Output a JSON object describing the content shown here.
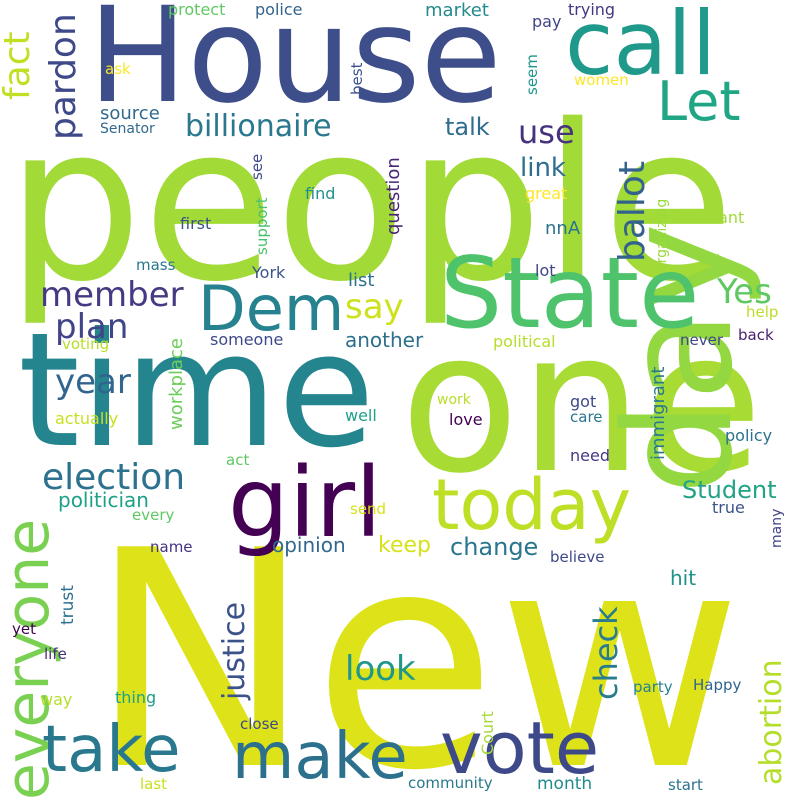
{
  "words": [
    {
      "text": "New",
      "color": "#dde318"
    },
    {
      "text": "people",
      "color": "#a2da37"
    },
    {
      "text": "one",
      "color": "#a8db34"
    },
    {
      "text": "time",
      "color": "#25858e"
    },
    {
      "text": "House",
      "color": "#3d4e8a"
    },
    {
      "text": "day",
      "color": "#93d741"
    },
    {
      "text": "State",
      "color": "#4ec36b"
    },
    {
      "text": "call",
      "color": "#1f9a8a"
    },
    {
      "text": "girl",
      "color": "#440154"
    },
    {
      "text": "today",
      "color": "#bddf26"
    },
    {
      "text": "vote",
      "color": "#3e4989"
    },
    {
      "text": "make",
      "color": "#2d708e"
    },
    {
      "text": "take",
      "color": "#29788e"
    },
    {
      "text": "everyone",
      "color": "#7ad151"
    },
    {
      "text": "Dem",
      "color": "#26828e"
    },
    {
      "text": "Let",
      "color": "#21a685"
    },
    {
      "text": "pardon",
      "color": "#3e4989"
    },
    {
      "text": "fact",
      "color": "#c2df23"
    },
    {
      "text": "billionaire",
      "color": "#2a788e"
    },
    {
      "text": "ballot",
      "color": "#33638d"
    },
    {
      "text": "election",
      "color": "#2c728e"
    },
    {
      "text": "year",
      "color": "#32658e"
    },
    {
      "text": "member",
      "color": "#443983"
    },
    {
      "text": "plan",
      "color": "#414487"
    },
    {
      "text": "say",
      "color": "#cde11d"
    },
    {
      "text": "Yes",
      "color": "#5ec962"
    },
    {
      "text": "use",
      "color": "#46327e"
    },
    {
      "text": "link",
      "color": "#2e6e8e"
    },
    {
      "text": "talk",
      "color": "#2f6c8e"
    },
    {
      "text": "check",
      "color": "#287c8e"
    },
    {
      "text": "abortion",
      "color": "#b5de2b"
    },
    {
      "text": "justice",
      "color": "#3b528b"
    },
    {
      "text": "look",
      "color": "#1f988b"
    },
    {
      "text": "Student",
      "color": "#20a386"
    },
    {
      "text": "change",
      "color": "#2a768e"
    },
    {
      "text": "keep",
      "color": "#d8e219"
    },
    {
      "text": "opinion",
      "color": "#31688e"
    },
    {
      "text": "politician",
      "color": "#1fa088"
    },
    {
      "text": "another",
      "color": "#2d708e"
    },
    {
      "text": "source",
      "color": "#31688e"
    },
    {
      "text": "market",
      "color": "#238a8d"
    },
    {
      "text": "fact",
      "color": "#c2df23"
    },
    {
      "text": "list",
      "color": "#2c728e"
    },
    {
      "text": "question",
      "color": "#482576"
    },
    {
      "text": "nnA",
      "color": "#2c728e"
    },
    {
      "text": "immigrant",
      "color": "#2a788e"
    },
    {
      "text": "workplace",
      "color": "#6ccd5a"
    },
    {
      "text": "support",
      "color": "#48c16e"
    },
    {
      "text": "trust",
      "color": "#2c728e"
    },
    {
      "text": "hit",
      "color": "#20928c"
    },
    {
      "text": "Court",
      "color": "#a5db36"
    },
    {
      "text": "protect",
      "color": "#5ec962"
    },
    {
      "text": "police",
      "color": "#33638d"
    },
    {
      "text": "trying",
      "color": "#453781"
    },
    {
      "text": "pay",
      "color": "#404588"
    },
    {
      "text": "women",
      "color": "#fde725"
    },
    {
      "text": "seem",
      "color": "#1f968b"
    },
    {
      "text": "ask",
      "color": "#fde725"
    },
    {
      "text": "best",
      "color": "#3b528b"
    },
    {
      "text": "Senator",
      "color": "#31688e"
    },
    {
      "text": "see",
      "color": "#3e4989"
    },
    {
      "text": "find",
      "color": "#21908d"
    },
    {
      "text": "great",
      "color": "#fde725"
    },
    {
      "text": "first",
      "color": "#3b528b"
    },
    {
      "text": "want",
      "color": "#a0da39"
    },
    {
      "text": "organizing",
      "color": "#9bd93c"
    },
    {
      "text": "mass",
      "color": "#2a788e"
    },
    {
      "text": "York",
      "color": "#3b528b"
    },
    {
      "text": "lot",
      "color": "#404688"
    },
    {
      "text": "help",
      "color": "#bade28"
    },
    {
      "text": "voting",
      "color": "#b8de29"
    },
    {
      "text": "someone",
      "color": "#3e4989"
    },
    {
      "text": "political",
      "color": "#b5de2b"
    },
    {
      "text": "never",
      "color": "#3e4989"
    },
    {
      "text": "back",
      "color": "#481f70"
    },
    {
      "text": "actually",
      "color": "#c8e020"
    },
    {
      "text": "well",
      "color": "#1fa088"
    },
    {
      "text": "love",
      "color": "#440154"
    },
    {
      "text": "work",
      "color": "#b8de29"
    },
    {
      "text": "got",
      "color": "#3e4989"
    },
    {
      "text": "care",
      "color": "#2a768e"
    },
    {
      "text": "policy",
      "color": "#2c728e"
    },
    {
      "text": "act",
      "color": "#5ec962"
    },
    {
      "text": "need",
      "color": "#453781"
    },
    {
      "text": "every",
      "color": "#5ec962"
    },
    {
      "text": "send",
      "color": "#d8e219"
    },
    {
      "text": "true",
      "color": "#3b528b"
    },
    {
      "text": "many",
      "color": "#414487"
    },
    {
      "text": "name",
      "color": "#46327e"
    },
    {
      "text": "believe",
      "color": "#3e4989"
    },
    {
      "text": "yet",
      "color": "#440154"
    },
    {
      "text": "life",
      "color": "#472d7b"
    },
    {
      "text": "way",
      "color": "#b5de2b"
    },
    {
      "text": "thing",
      "color": "#1fa088"
    },
    {
      "text": "close",
      "color": "#3e4989"
    },
    {
      "text": "party",
      "color": "#26828e"
    },
    {
      "text": "Happy",
      "color": "#32658e"
    },
    {
      "text": "last",
      "color": "#c8e020"
    },
    {
      "text": "community",
      "color": "#2a788e"
    },
    {
      "text": "month",
      "color": "#238a8d"
    },
    {
      "text": "start",
      "color": "#2c728e"
    }
  ]
}
